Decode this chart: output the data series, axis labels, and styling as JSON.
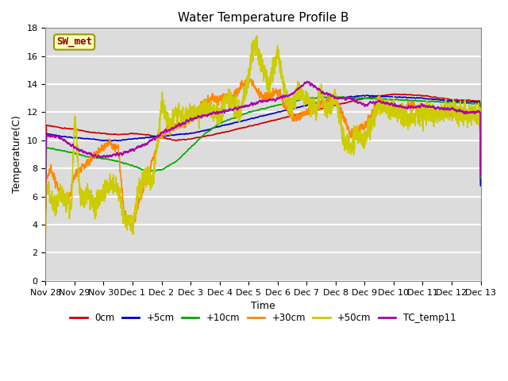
{
  "title": "Water Temperature Profile B",
  "xlabel": "Time",
  "ylabel": "Temperature(C)",
  "ylim": [
    0,
    18
  ],
  "yticks": [
    0,
    2,
    4,
    6,
    8,
    10,
    12,
    14,
    16,
    18
  ],
  "annotation_text": "SW_met",
  "annotation_color": "#8B0000",
  "annotation_bg": "#FFFFC0",
  "annotation_edge": "#999900",
  "plot_bg": "#DCDCDC",
  "grid_color": "white",
  "x_tick_labels": [
    "Nov 28",
    "Nov 29",
    "Nov 30",
    "Dec 1",
    "Dec 2",
    "Dec 3",
    "Dec 4",
    "Dec 5",
    "Dec 6",
    "Dec 7",
    "Dec 8",
    "Dec 9",
    "Dec 10",
    "Dec 11",
    "Dec 12",
    "Dec 13"
  ],
  "legend_entries": [
    "0cm",
    "+5cm",
    "+10cm",
    "+30cm",
    "+50cm",
    "TC_temp11"
  ],
  "legend_colors": [
    "#CC0000",
    "#0000CC",
    "#00AA00",
    "#FF8800",
    "#CCCC00",
    "#AA00AA"
  ],
  "series_colors": [
    "#CC0000",
    "#0000CC",
    "#00AA00",
    "#FF8800",
    "#CCCC00",
    "#AA00AA"
  ],
  "series_lw": [
    1.2,
    1.2,
    1.2,
    1.2,
    1.2,
    1.2
  ]
}
